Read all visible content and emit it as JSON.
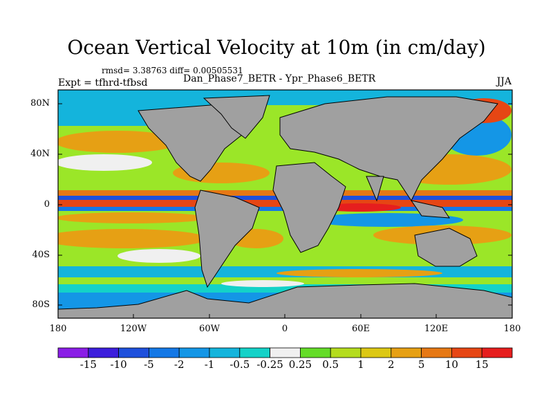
{
  "title": "Ocean Vertical Velocity at 10m (in cm/day)",
  "stats_line": "rmsd= 3.38763 diff= 0.00505531",
  "experiment_label": "Expt = tfhrd-tfbsd",
  "subtitle": "Dan_Phase7_BETR - Ypr_Phase6_BETR",
  "season": "JJA",
  "lat_labels": [
    "80N",
    "40N",
    "0",
    "40S",
    "80S"
  ],
  "lon_labels": [
    "180",
    "120W",
    "60W",
    "0",
    "60E",
    "120E",
    "180"
  ],
  "colorbar": {
    "labels": [
      "-15",
      "-10",
      "-5",
      "-2",
      "-1",
      "-0.5",
      "-0.25",
      "0.25",
      "0.5",
      "1",
      "2",
      "5",
      "10",
      "15"
    ],
    "colors": [
      "#8a1ee6",
      "#3c1edc",
      "#1e50dc",
      "#1478e6",
      "#1496e6",
      "#14b4dc",
      "#14d2c8",
      "#f0f0f0",
      "#64dc28",
      "#b4dc1e",
      "#dcc814",
      "#e6a014",
      "#e67814",
      "#e64614",
      "#e61e1e"
    ]
  },
  "colors": {
    "land": "#a0a0a0",
    "coastline": "#000000",
    "ocean_base": "#9be628"
  }
}
